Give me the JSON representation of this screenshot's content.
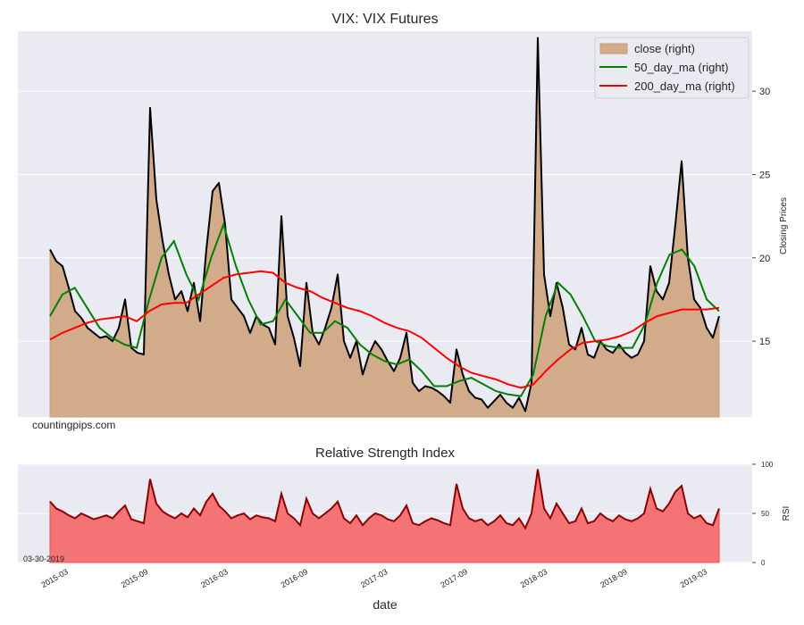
{
  "chart_data": [
    {
      "type": "area",
      "title": "VIX: VIX Futures",
      "xlabel": "",
      "ylabel": "Closing Prices",
      "ylim": [
        10.45,
        33.6
      ],
      "y_ticks": [
        15,
        20,
        25,
        30
      ],
      "grid": true,
      "watermark": "countingpips.com",
      "legend_position": "top-right",
      "x_range": [
        "2015-01",
        "2019-03"
      ],
      "sampling": "approx. biweekly",
      "series": [
        {
          "name": "close (right)",
          "kind": "area",
          "color": "#D2AB8A",
          "line_color": "#000000",
          "values": [
            20.5,
            19.8,
            19.5,
            18.2,
            16.8,
            16.4,
            15.8,
            15.5,
            15.2,
            15.3,
            15.0,
            15.8,
            17.5,
            14.6,
            14.3,
            14.2,
            29.0,
            23.5,
            21.0,
            19.0,
            17.5,
            18.0,
            16.8,
            18.5,
            16.2,
            20.5,
            24.0,
            24.5,
            22.0,
            17.5,
            17.0,
            16.5,
            15.5,
            16.5,
            16.0,
            15.8,
            14.8,
            22.5,
            16.5,
            15.2,
            13.5,
            18.5,
            15.5,
            14.8,
            15.8,
            17.0,
            19.0,
            15.0,
            14.0,
            15.0,
            13.0,
            14.2,
            15.0,
            14.5,
            13.8,
            13.2,
            14.0,
            15.5,
            12.5,
            12.0,
            12.3,
            12.2,
            12.0,
            11.7,
            11.3,
            14.5,
            13.0,
            12.0,
            11.6,
            11.5,
            11.0,
            11.4,
            11.8,
            11.3,
            11.0,
            11.6,
            10.8,
            12.5,
            33.2,
            19.0,
            16.5,
            18.5,
            17.0,
            14.8,
            14.5,
            15.8,
            14.2,
            14.0,
            15.0,
            14.5,
            14.3,
            14.8,
            14.3,
            14.0,
            14.2,
            15.0,
            19.5,
            18.0,
            17.5,
            18.5,
            22.0,
            25.8,
            20.0,
            17.5,
            17.0,
            15.8,
            15.2,
            16.5
          ]
        },
        {
          "name": "50_day_ma (right)",
          "kind": "line",
          "color": "#008000",
          "values": [
            16.5,
            17.8,
            18.2,
            17.0,
            15.8,
            15.2,
            14.8,
            14.6,
            17.5,
            20.0,
            21.0,
            19.0,
            17.5,
            20.0,
            22.0,
            19.5,
            17.5,
            16.0,
            16.2,
            17.5,
            16.5,
            15.5,
            15.5,
            16.2,
            15.8,
            14.8,
            14.2,
            13.8,
            13.6,
            13.9,
            13.2,
            12.3,
            12.3,
            12.6,
            12.8,
            12.4,
            12.0,
            11.8,
            11.7,
            13.0,
            16.5,
            18.5,
            17.8,
            16.5,
            15.0,
            14.7,
            14.6,
            14.6,
            16.0,
            18.5,
            20.2,
            20.5,
            19.5,
            17.5,
            16.8
          ]
        },
        {
          "name": "200_day_ma (right)",
          "kind": "line",
          "color": "#FF0000",
          "values": [
            15.1,
            15.5,
            15.8,
            16.1,
            16.3,
            16.4,
            16.5,
            16.2,
            16.8,
            17.2,
            17.3,
            17.3,
            17.8,
            18.3,
            18.8,
            19.0,
            19.1,
            19.2,
            19.1,
            18.5,
            18.2,
            18.0,
            17.6,
            17.3,
            17.0,
            16.8,
            16.5,
            16.1,
            15.8,
            15.6,
            15.2,
            14.6,
            14.0,
            13.5,
            13.1,
            12.9,
            12.7,
            12.4,
            12.2,
            12.4,
            13.2,
            13.9,
            14.5,
            14.9,
            15.0,
            15.1,
            15.3,
            15.6,
            16.1,
            16.5,
            16.7,
            16.9,
            16.9,
            16.9,
            17.0
          ]
        }
      ]
    },
    {
      "type": "area",
      "title": "Relative Strength Index",
      "xlabel": "date",
      "ylabel": "RSI",
      "ylim": [
        0,
        100
      ],
      "y_ticks": [
        0,
        50,
        100
      ],
      "grid": true,
      "date_label": "03-30-2019",
      "x_ticks": [
        "2015-03",
        "2015-09",
        "2016-03",
        "2016-09",
        "2017-03",
        "2017-09",
        "2018-03",
        "2018-09",
        "2019-03"
      ],
      "series": [
        {
          "name": "RSI",
          "fill_color": "#F47476",
          "line_color": "#8B0000",
          "values": [
            62,
            55,
            52,
            48,
            45,
            50,
            47,
            44,
            46,
            48,
            45,
            52,
            58,
            44,
            42,
            40,
            85,
            60,
            52,
            48,
            45,
            50,
            46,
            55,
            48,
            62,
            70,
            58,
            52,
            45,
            48,
            50,
            44,
            48,
            46,
            45,
            42,
            70,
            50,
            45,
            38,
            65,
            50,
            45,
            50,
            55,
            62,
            45,
            40,
            48,
            38,
            45,
            50,
            48,
            44,
            42,
            48,
            58,
            40,
            38,
            42,
            45,
            43,
            40,
            38,
            80,
            55,
            45,
            42,
            44,
            38,
            42,
            48,
            40,
            38,
            45,
            35,
            50,
            95,
            55,
            45,
            60,
            50,
            40,
            42,
            55,
            40,
            42,
            50,
            45,
            42,
            48,
            44,
            42,
            45,
            50,
            75,
            55,
            52,
            60,
            72,
            78,
            50,
            45,
            48,
            40,
            38,
            55
          ]
        }
      ]
    }
  ]
}
